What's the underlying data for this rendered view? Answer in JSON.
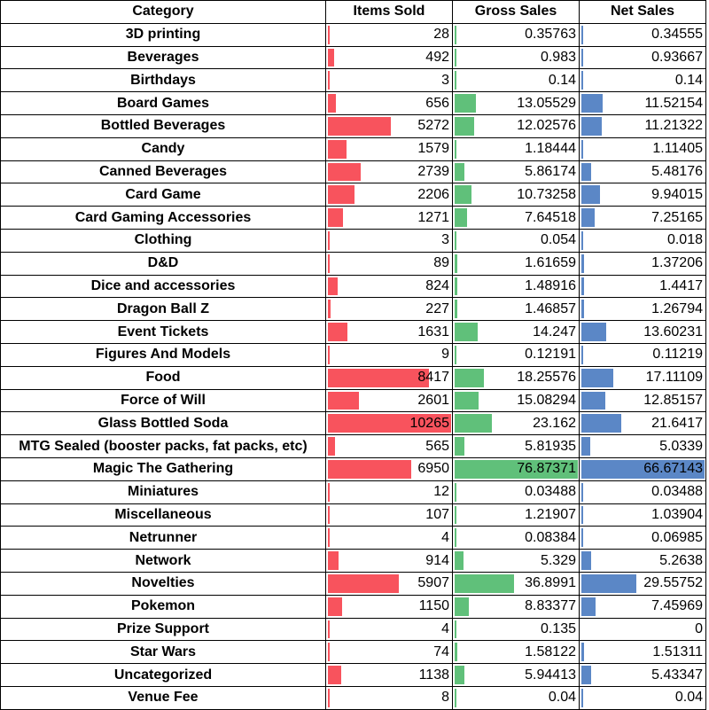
{
  "colors": {
    "items_bar": "#f8535d",
    "gross_bar": "#60c07a",
    "net_bar": "#5b87c6"
  },
  "headers": [
    "Category",
    "Items Sold",
    "Gross Sales",
    "Net Sales"
  ],
  "rows": [
    {
      "category": "3D printing",
      "items_sold": "28",
      "gross_sales": "0.35763",
      "net_sales": "0.34555"
    },
    {
      "category": "Beverages",
      "items_sold": "492",
      "gross_sales": "0.983",
      "net_sales": "0.93667"
    },
    {
      "category": "Birthdays",
      "items_sold": "3",
      "gross_sales": "0.14",
      "net_sales": "0.14"
    },
    {
      "category": "Board Games",
      "items_sold": "656",
      "gross_sales": "13.05529",
      "net_sales": "11.52154"
    },
    {
      "category": "Bottled Beverages",
      "items_sold": "5272",
      "gross_sales": "12.02576",
      "net_sales": "11.21322"
    },
    {
      "category": "Candy",
      "items_sold": "1579",
      "gross_sales": "1.18444",
      "net_sales": "1.11405"
    },
    {
      "category": "Canned Beverages",
      "items_sold": "2739",
      "gross_sales": "5.86174",
      "net_sales": "5.48176"
    },
    {
      "category": "Card Game",
      "items_sold": "2206",
      "gross_sales": "10.73258",
      "net_sales": "9.94015"
    },
    {
      "category": "Card Gaming Accessories",
      "items_sold": "1271",
      "gross_sales": "7.64518",
      "net_sales": "7.25165"
    },
    {
      "category": "Clothing",
      "items_sold": "3",
      "gross_sales": "0.054",
      "net_sales": "0.018"
    },
    {
      "category": "D&D",
      "items_sold": "89",
      "gross_sales": "1.61659",
      "net_sales": "1.37206"
    },
    {
      "category": "Dice and accessories",
      "items_sold": "824",
      "gross_sales": "1.48916",
      "net_sales": "1.4417"
    },
    {
      "category": "Dragon Ball Z",
      "items_sold": "227",
      "gross_sales": "1.46857",
      "net_sales": "1.26794"
    },
    {
      "category": "Event Tickets",
      "items_sold": "1631",
      "gross_sales": "14.247",
      "net_sales": "13.60231"
    },
    {
      "category": "Figures And Models",
      "items_sold": "9",
      "gross_sales": "0.12191",
      "net_sales": "0.11219"
    },
    {
      "category": "Food",
      "items_sold": "8417",
      "gross_sales": "18.25576",
      "net_sales": "17.11109"
    },
    {
      "category": "Force of Will",
      "items_sold": "2601",
      "gross_sales": "15.08294",
      "net_sales": "12.85157"
    },
    {
      "category": "Glass Bottled Soda",
      "items_sold": "10265",
      "gross_sales": "23.162",
      "net_sales": "21.6417"
    },
    {
      "category": "MTG Sealed (booster packs, fat packs, etc)",
      "items_sold": "565",
      "gross_sales": "5.81935",
      "net_sales": "5.0339"
    },
    {
      "category": "Magic The Gathering",
      "items_sold": "6950",
      "gross_sales": "76.87371",
      "net_sales": "66.67143"
    },
    {
      "category": "Miniatures",
      "items_sold": "12",
      "gross_sales": "0.03488",
      "net_sales": "0.03488"
    },
    {
      "category": "Miscellaneous",
      "items_sold": "107",
      "gross_sales": "1.21907",
      "net_sales": "1.03904"
    },
    {
      "category": "Netrunner",
      "items_sold": "4",
      "gross_sales": "0.08384",
      "net_sales": "0.06985"
    },
    {
      "category": "Network",
      "items_sold": "914",
      "gross_sales": "5.329",
      "net_sales": "5.2638"
    },
    {
      "category": "Novelties",
      "items_sold": "5907",
      "gross_sales": "36.8991",
      "net_sales": "29.55752"
    },
    {
      "category": "Pokemon",
      "items_sold": "1150",
      "gross_sales": "8.83377",
      "net_sales": "7.45969"
    },
    {
      "category": "Prize Support",
      "items_sold": "4",
      "gross_sales": "0.135",
      "net_sales": "0"
    },
    {
      "category": "Star Wars",
      "items_sold": "74",
      "gross_sales": "1.58122",
      "net_sales": "1.51311"
    },
    {
      "category": "Uncategorized",
      "items_sold": "1138",
      "gross_sales": "5.94413",
      "net_sales": "5.43347"
    },
    {
      "category": "Venue Fee",
      "items_sold": "8",
      "gross_sales": "0.04",
      "net_sales": "0.04"
    }
  ]
}
